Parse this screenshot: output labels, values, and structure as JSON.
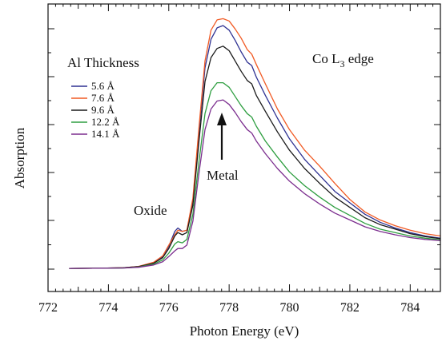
{
  "chart_data": {
    "type": "line",
    "title": "",
    "xlabel": "Photon Energy (eV)",
    "ylabel": "Absorption",
    "xlim": [
      772,
      785
    ],
    "ylim": [
      0,
      1.1
    ],
    "x_ticks": [
      "772",
      "774",
      "776",
      "778",
      "780",
      "782",
      "784"
    ],
    "y_tick_labels_shown": false,
    "legend": {
      "title": "Al Thickness",
      "placement": "upper-left"
    },
    "annotations": [
      {
        "text": "Co L3 edge",
        "main": "Co L",
        "sub": "3",
        "rest": " edge",
        "color": "#111111"
      },
      {
        "text": "Oxide",
        "color": "#e8532a"
      },
      {
        "text": "Metal",
        "color": "#3d3ba6",
        "arrow": "points up toward metal peak at 777.8 eV"
      }
    ],
    "x": [
      772.7,
      773.5,
      774.5,
      775.0,
      775.5,
      775.8,
      776.0,
      776.2,
      776.3,
      776.45,
      776.6,
      776.8,
      777.0,
      777.2,
      777.4,
      777.6,
      777.8,
      778.0,
      778.2,
      778.4,
      778.6,
      778.75,
      778.9,
      779.2,
      779.6,
      780.0,
      780.5,
      781.0,
      781.5,
      782.0,
      782.5,
      783.0,
      783.5,
      784.0,
      784.5,
      785.0
    ],
    "series": [
      {
        "name": "5.6 Å",
        "color": "#2e3192",
        "values": [
          0.003,
          0.004,
          0.006,
          0.012,
          0.028,
          0.055,
          0.1,
          0.165,
          0.18,
          0.165,
          0.17,
          0.3,
          0.6,
          0.88,
          1.005,
          1.055,
          1.065,
          1.045,
          1.0,
          0.95,
          0.905,
          0.89,
          0.84,
          0.76,
          0.66,
          0.57,
          0.48,
          0.41,
          0.34,
          0.29,
          0.24,
          0.205,
          0.18,
          0.16,
          0.145,
          0.135
        ]
      },
      {
        "name": "7.6 Å",
        "color": "#f15a24",
        "values": [
          0.003,
          0.004,
          0.006,
          0.012,
          0.03,
          0.058,
          0.105,
          0.15,
          0.17,
          0.165,
          0.17,
          0.31,
          0.62,
          0.91,
          1.045,
          1.09,
          1.095,
          1.085,
          1.05,
          1.01,
          0.96,
          0.94,
          0.895,
          0.81,
          0.7,
          0.61,
          0.52,
          0.45,
          0.375,
          0.305,
          0.25,
          0.215,
          0.19,
          0.17,
          0.155,
          0.145
        ]
      },
      {
        "name": "9.6 Å",
        "color": "#1a1a1a",
        "values": [
          0.003,
          0.004,
          0.006,
          0.011,
          0.026,
          0.05,
          0.09,
          0.145,
          0.16,
          0.15,
          0.16,
          0.28,
          0.56,
          0.82,
          0.925,
          0.965,
          0.975,
          0.955,
          0.91,
          0.865,
          0.825,
          0.81,
          0.76,
          0.69,
          0.6,
          0.52,
          0.44,
          0.375,
          0.315,
          0.27,
          0.225,
          0.195,
          0.175,
          0.155,
          0.142,
          0.133
        ]
      },
      {
        "name": "12.2 Å",
        "color": "#2e9e40",
        "values": [
          0.003,
          0.004,
          0.005,
          0.009,
          0.022,
          0.04,
          0.07,
          0.11,
          0.12,
          0.115,
          0.13,
          0.24,
          0.47,
          0.68,
          0.78,
          0.815,
          0.815,
          0.795,
          0.755,
          0.715,
          0.68,
          0.665,
          0.625,
          0.56,
          0.49,
          0.425,
          0.365,
          0.315,
          0.27,
          0.235,
          0.2,
          0.175,
          0.16,
          0.145,
          0.135,
          0.128
        ]
      },
      {
        "name": "14.1 Å",
        "color": "#7b2d8e",
        "values": [
          0.003,
          0.004,
          0.005,
          0.008,
          0.018,
          0.032,
          0.055,
          0.08,
          0.09,
          0.09,
          0.105,
          0.21,
          0.42,
          0.61,
          0.7,
          0.735,
          0.74,
          0.72,
          0.685,
          0.645,
          0.61,
          0.595,
          0.56,
          0.505,
          0.44,
          0.385,
          0.33,
          0.285,
          0.245,
          0.215,
          0.185,
          0.165,
          0.15,
          0.138,
          0.13,
          0.125
        ]
      }
    ]
  }
}
